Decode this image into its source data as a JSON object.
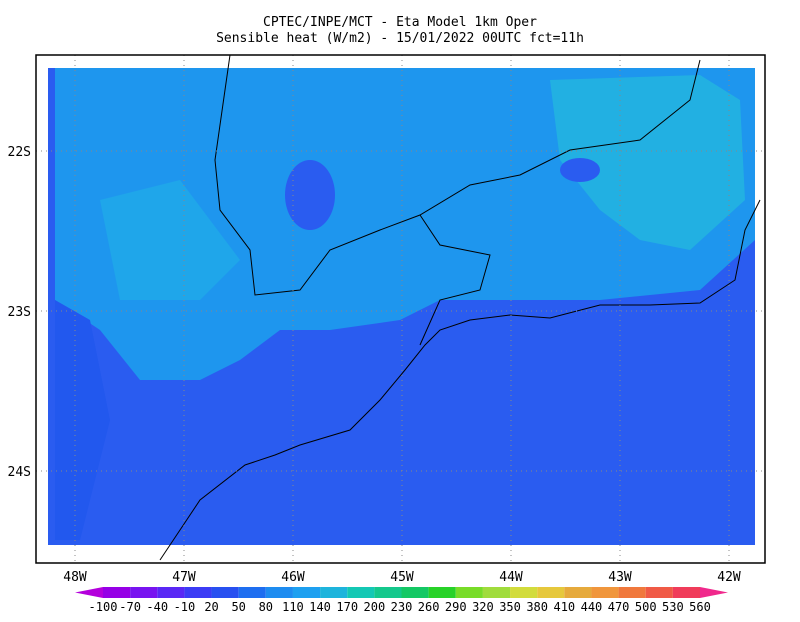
{
  "title": [
    "CPTEC/INPE/MCT -  Eta Model 1km Oper",
    "Sensible heat (W/m2) - 15/01/2022 00UTC fct=11h"
  ],
  "lon_labels": [
    "48W",
    "47W",
    "46W",
    "45W",
    "44W",
    "43W",
    "42W"
  ],
  "lat_labels": [
    "22S",
    "23S",
    "24S"
  ],
  "colorbar": {
    "levels": [
      -100,
      -70,
      -40,
      -10,
      20,
      50,
      80,
      110,
      140,
      170,
      200,
      230,
      260,
      290,
      320,
      350,
      380,
      410,
      440,
      470,
      500,
      530,
      560
    ],
    "colors": [
      "#b400dc",
      "#9600e6",
      "#7814f0",
      "#5a28f5",
      "#3c3cf5",
      "#2850f0",
      "#1e6ef0",
      "#1e8cf0",
      "#1ea0f0",
      "#1eb4dc",
      "#14c8b4",
      "#14c88c",
      "#14c864",
      "#28d228",
      "#78dc28",
      "#a0dc3c",
      "#d2dc3c",
      "#e6c83c",
      "#e6aa3c",
      "#f0963c",
      "#f0783c",
      "#f05a46",
      "#f03c5a",
      "#f0288c"
    ]
  }
}
